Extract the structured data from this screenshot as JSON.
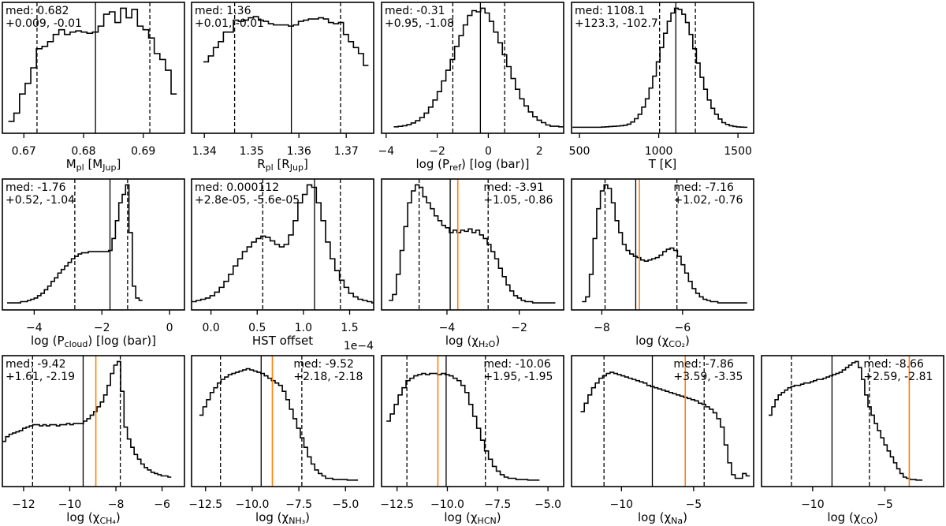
{
  "colors": {
    "hist": "#000000",
    "median": "#000000",
    "truth": "#ff7f0e"
  },
  "chart_data": [
    {
      "id": "m_pl",
      "type": "bar",
      "style": "step-histogram",
      "xlabel": [
        {
          "t": "M"
        },
        {
          "t": "pl",
          "s": 1
        },
        {
          "t": " [M"
        },
        {
          "t": "Jup",
          "s": 1
        },
        {
          "t": "]"
        }
      ],
      "xlim": [
        0.6664,
        0.6969
      ],
      "ticks": [
        0.67,
        0.68,
        0.69
      ],
      "tick_labels": [
        "0.67",
        "0.68",
        "0.69"
      ],
      "med_text": "med: 0.682",
      "err_text": "+0.009, -0.01",
      "text_side": "left",
      "median": 0.682,
      "lo": 0.6722,
      "hi": 0.6911,
      "truth": null,
      "hist": {
        "start": 0.6674,
        "end": 0.6956,
        "heights": [
          0.05,
          0.12,
          0.28,
          0.37,
          0.5,
          0.66,
          0.68,
          0.72,
          0.78,
          0.82,
          0.78,
          0.8,
          0.81,
          0.8,
          0.79,
          0.8,
          0.85,
          0.95,
          0.97,
          0.88,
          1.0,
          0.92,
          0.99,
          0.85,
          0.82,
          0.75,
          0.62,
          0.57,
          0.48,
          0.28
        ]
      }
    },
    {
      "id": "r_pl",
      "type": "bar",
      "style": "step-histogram",
      "xlabel": [
        {
          "t": "R"
        },
        {
          "t": "pl",
          "s": 1
        },
        {
          "t": " [R"
        },
        {
          "t": "Jup",
          "s": 1
        },
        {
          "t": "]"
        }
      ],
      "xlim": [
        1.3373,
        1.3758
      ],
      "ticks": [
        1.34,
        1.35,
        1.36,
        1.37
      ],
      "tick_labels": [
        "1.34",
        "1.35",
        "1.36",
        "1.37"
      ],
      "med_text": "med: 1.36",
      "err_text": "+0.01, -0.01",
      "text_side": "left",
      "median": 1.3584,
      "lo": 1.3464,
      "hi": 1.3688,
      "truth": null,
      "hist": {
        "start": 1.3398,
        "end": 1.3747,
        "heights": [
          0.55,
          0.6,
          0.67,
          0.72,
          0.8,
          0.8,
          0.9,
          0.89,
          0.9,
          0.92,
          0.93,
          0.9,
          0.89,
          0.87,
          0.86,
          0.86,
          0.86,
          0.85,
          0.86,
          0.89,
          0.9,
          0.91,
          0.91,
          0.92,
          0.91,
          0.88,
          0.87,
          0.88,
          0.78,
          0.72,
          0.67,
          0.62,
          0.52
        ]
      }
    },
    {
      "id": "log_p_ref",
      "type": "bar",
      "style": "step-histogram",
      "xlabel": [
        {
          "t": "log (P"
        },
        {
          "t": "ref",
          "s": 1
        },
        {
          "t": ") [log (bar)]"
        }
      ],
      "xlim": [
        -4.18,
        2.95
      ],
      "ticks": [
        -4,
        -2,
        0,
        2
      ],
      "tick_labels": [
        "−4",
        "−2",
        "0",
        "2"
      ],
      "med_text": "med: -0.31",
      "err_text": "+0.95, -1.08",
      "text_side": "left",
      "median": -0.31,
      "lo": -1.39,
      "hi": 0.64,
      "truth": null,
      "hist": {
        "start": -3.7,
        "end": 2.93,
        "heights": [
          0.005,
          0.009,
          0.014,
          0.023,
          0.037,
          0.056,
          0.083,
          0.12,
          0.17,
          0.23,
          0.3,
          0.39,
          0.48,
          0.57,
          0.68,
          0.77,
          0.86,
          0.94,
          0.98,
          0.97,
          1.0,
          0.96,
          0.89,
          0.8,
          0.71,
          0.61,
          0.51,
          0.41,
          0.32,
          0.24,
          0.18,
          0.13,
          0.09,
          0.06,
          0.04,
          0.02,
          0.01,
          0.01,
          0.005
        ]
      }
    },
    {
      "id": "temperature",
      "type": "bar",
      "style": "step-histogram",
      "xlabel": [
        {
          "t": "T [K]"
        }
      ],
      "xlim": [
        450,
        1599
      ],
      "ticks": [
        500,
        1000,
        1500
      ],
      "tick_labels": [
        "500",
        "1000",
        "1500"
      ],
      "med_text": "med: 1108.1",
      "err_text": "+123.3, -102.7",
      "text_side": "left",
      "median": 1108.1,
      "lo": 1005.4,
      "hi": 1231.4,
      "truth": null,
      "hist": {
        "start": 456,
        "end": 1560,
        "heights": [
          0.001,
          0.001,
          0.001,
          0.001,
          0.001,
          0.001,
          0.001,
          0.001,
          0.003,
          0.005,
          0.007,
          0.009,
          0.011,
          0.014,
          0.018,
          0.027,
          0.045,
          0.073,
          0.11,
          0.17,
          0.24,
          0.33,
          0.43,
          0.55,
          0.67,
          0.79,
          0.89,
          0.96,
          1.0,
          0.99,
          0.95,
          0.88,
          0.78,
          0.66,
          0.54,
          0.42,
          0.32,
          0.23,
          0.16,
          0.11,
          0.07,
          0.04,
          0.025,
          0.014,
          0.008,
          0.004,
          0.002,
          0.001
        ]
      }
    },
    {
      "id": "log_p_cloud",
      "type": "bar",
      "style": "step-histogram",
      "xlabel": [
        {
          "t": "log (P"
        },
        {
          "t": "cloud",
          "s": 1
        },
        {
          "t": ") [log (bar)]"
        }
      ],
      "xlim": [
        -4.94,
        0.44
      ],
      "ticks": [
        -4,
        -2,
        0
      ],
      "tick_labels": [
        "−4",
        "−2",
        "0"
      ],
      "med_text": "med: -1.76",
      "err_text": "+0.52, -1.04",
      "text_side": "left",
      "median": -1.76,
      "lo": -2.8,
      "hi": -1.24,
      "truth": null,
      "hist": {
        "start": -4.8,
        "end": -0.8,
        "heights": [
          0.01,
          0.01,
          0.01,
          0.01,
          0.02,
          0.02,
          0.03,
          0.04,
          0.05,
          0.07,
          0.09,
          0.12,
          0.15,
          0.19,
          0.22,
          0.26,
          0.29,
          0.32,
          0.35,
          0.38,
          0.4,
          0.42,
          0.43,
          0.43,
          0.44,
          0.44,
          0.44,
          0.44,
          0.44,
          0.44,
          0.45,
          0.55,
          0.7,
          0.85,
          0.92,
          1.0,
          0.6,
          0.15,
          0.05,
          0.03
        ]
      }
    },
    {
      "id": "hst_offset",
      "type": "bar",
      "style": "step-histogram",
      "xlabel": [
        {
          "t": "HST offset"
        }
      ],
      "offset_text": "1e−4",
      "xlim": [
        -0.21,
        1.76
      ],
      "ticks": [
        0,
        0.5,
        1.0,
        1.5
      ],
      "tick_labels": [
        "0.0",
        "0.5",
        "1.0",
        "1.5"
      ],
      "med_text": "med: 0.000112",
      "err_text": "+2.8e-05, -5.6e-05",
      "text_side": "left",
      "median": 1.12,
      "lo": 0.56,
      "hi": 1.4,
      "truth": null,
      "hist": {
        "start": -0.21,
        "end": 1.79,
        "heights": [
          0.02,
          0.03,
          0.04,
          0.05,
          0.07,
          0.1,
          0.14,
          0.19,
          0.25,
          0.32,
          0.38,
          0.44,
          0.48,
          0.52,
          0.55,
          0.57,
          0.56,
          0.53,
          0.5,
          0.48,
          0.5,
          0.58,
          0.7,
          0.85,
          0.92,
          1.0,
          0.98,
          0.85,
          0.7,
          0.52,
          0.38,
          0.28,
          0.2,
          0.14,
          0.09,
          0.06,
          0.04,
          0.03,
          0.02,
          0.01
        ]
      }
    },
    {
      "id": "log_chi_h2o",
      "type": "bar",
      "style": "step-histogram",
      "xlabel": [
        {
          "t": "log (χ"
        },
        {
          "t": "H₂O",
          "s": 1
        },
        {
          "t": ")"
        }
      ],
      "xlim": [
        -5.81,
        -0.77
      ],
      "ticks": [
        -4,
        -2
      ],
      "tick_labels": [
        "−4",
        "−2"
      ],
      "med_text": "med: -3.91",
      "err_text": "+1.05, -0.86",
      "text_side": "right",
      "median": -3.91,
      "lo": -4.77,
      "hi": -2.86,
      "truth": -3.7,
      "hist": {
        "start": -5.61,
        "end": -1.0,
        "heights": [
          0.03,
          0.08,
          0.25,
          0.45,
          0.65,
          0.85,
          0.95,
          1.0,
          0.98,
          0.9,
          0.85,
          0.8,
          0.74,
          0.7,
          0.66,
          0.64,
          0.6,
          0.62,
          0.6,
          0.62,
          0.61,
          0.63,
          0.6,
          0.62,
          0.58,
          0.55,
          0.5,
          0.44,
          0.38,
          0.3,
          0.23,
          0.16,
          0.11,
          0.07,
          0.05,
          0.03,
          0.02,
          0.02,
          0.01,
          0.01,
          0.01,
          0.01,
          0.01,
          0.01
        ]
      }
    },
    {
      "id": "log_chi_co2",
      "type": "bar",
      "style": "step-histogram",
      "xlabel": [
        {
          "t": "log (χ"
        },
        {
          "t": "CO₂",
          "s": 1
        },
        {
          "t": ")"
        }
      ],
      "xlim": [
        -8.75,
        -4.24
      ],
      "ticks": [
        -8,
        -6
      ],
      "tick_labels": [
        "−8",
        "−6"
      ],
      "med_text": "med: -7.16",
      "err_text": "+1.02, -0.76",
      "text_side": "right",
      "median": -7.16,
      "lo": -7.92,
      "hi": -6.14,
      "truth": -7.07,
      "hist": {
        "start": -8.49,
        "end": -4.4,
        "heights": [
          0.02,
          0.06,
          0.25,
          0.55,
          0.8,
          0.95,
          1.0,
          0.97,
          0.85,
          0.7,
          0.6,
          0.5,
          0.45,
          0.42,
          0.4,
          0.39,
          0.37,
          0.36,
          0.37,
          0.38,
          0.39,
          0.41,
          0.44,
          0.46,
          0.47,
          0.45,
          0.4,
          0.33,
          0.26,
          0.19,
          0.13,
          0.09,
          0.06,
          0.04,
          0.03,
          0.02,
          0.02,
          0.01,
          0.01,
          0.01,
          0.01,
          0.01,
          0.01,
          0.01,
          0.01
        ]
      }
    },
    {
      "id": "log_chi_ch4",
      "type": "bar",
      "style": "step-histogram",
      "xlabel": [
        {
          "t": "log (χ"
        },
        {
          "t": "CH₄",
          "s": 1
        },
        {
          "t": ")"
        }
      ],
      "xlim": [
        -12.92,
        -5.03
      ],
      "ticks": [
        -12,
        -10,
        -8,
        -6
      ],
      "tick_labels": [
        "−12",
        "−10",
        "−8",
        "−6"
      ],
      "med_text": "med: -9.42",
      "err_text": "+1.61, -2.19",
      "text_side": "left",
      "median": -9.42,
      "lo": -11.61,
      "hi": -7.81,
      "truth": -8.87,
      "hist": {
        "start": -12.92,
        "end": -5.6,
        "heights": [
          0.33,
          0.37,
          0.39,
          0.4,
          0.41,
          0.42,
          0.44,
          0.45,
          0.46,
          0.47,
          0.47,
          0.46,
          0.47,
          0.46,
          0.47,
          0.47,
          0.46,
          0.47,
          0.47,
          0.48,
          0.47,
          0.48,
          0.48,
          0.48,
          0.5,
          0.52,
          0.55,
          0.58,
          0.62,
          0.66,
          0.72,
          0.8,
          0.9,
          0.97,
          1.0,
          0.75,
          0.45,
          0.35,
          0.28,
          0.22,
          0.18,
          0.14,
          0.11,
          0.09,
          0.07,
          0.06,
          0.05,
          0.04,
          0.04,
          0.03
        ]
      }
    },
    {
      "id": "log_chi_nh3",
      "type": "bar",
      "style": "step-histogram",
      "xlabel": [
        {
          "t": "log (χ"
        },
        {
          "t": "NH₃",
          "s": 1
        },
        {
          "t": ")"
        }
      ],
      "xlim": [
        -13.25,
        -3.49
      ],
      "ticks": [
        -12.5,
        -10,
        -7.5,
        -5
      ],
      "tick_labels": [
        "−12.5",
        "−10.0",
        "−7.5",
        "−5.0"
      ],
      "med_text": "med: -9.52",
      "err_text": "+2.18, -2.18",
      "text_side": "right",
      "median": -9.52,
      "lo": -11.7,
      "hi": -7.34,
      "truth": -8.92,
      "hist": {
        "start": -12.83,
        "end": -4.33,
        "heights": [
          0.55,
          0.62,
          0.68,
          0.74,
          0.78,
          0.82,
          0.85,
          0.87,
          0.89,
          0.9,
          0.91,
          0.92,
          0.93,
          0.94,
          0.93,
          0.92,
          0.91,
          0.9,
          0.88,
          0.86,
          0.84,
          0.82,
          0.8,
          0.75,
          0.68,
          0.6,
          0.52,
          0.44,
          0.36,
          0.28,
          0.2,
          0.14,
          0.09,
          0.06,
          0.04,
          0.02,
          0.02,
          0.01,
          0.01,
          0.01,
          0.01,
          0.005,
          0.005,
          0.005
        ]
      }
    },
    {
      "id": "log_chi_hcn",
      "type": "bar",
      "style": "step-histogram",
      "xlabel": [
        {
          "t": "log (χ"
        },
        {
          "t": "HCN",
          "s": 1
        },
        {
          "t": ")"
        }
      ],
      "xlim": [
        -13.27,
        -4.22
      ],
      "ticks": [
        -12.5,
        -10,
        -7.5,
        -5
      ],
      "tick_labels": [
        "−12.5",
        "−10.0",
        "−7.5",
        "−5.0"
      ],
      "med_text": "med: -10.06",
      "err_text": "+1.95, -1.95",
      "text_side": "right",
      "median": -10.06,
      "lo": -12.01,
      "hi": -8.11,
      "truth": -10.47,
      "hist": {
        "start": -13.03,
        "end": -5.42,
        "heights": [
          0.5,
          0.56,
          0.64,
          0.72,
          0.78,
          0.84,
          0.86,
          0.88,
          0.89,
          0.9,
          0.89,
          0.9,
          0.9,
          0.89,
          0.9,
          0.89,
          0.88,
          0.86,
          0.84,
          0.8,
          0.74,
          0.64,
          0.54,
          0.44,
          0.34,
          0.25,
          0.18,
          0.12,
          0.08,
          0.05,
          0.03,
          0.02,
          0.02,
          0.01,
          0.01,
          0.01,
          0.005,
          0.005,
          0.005
        ]
      }
    },
    {
      "id": "log_chi_na",
      "type": "bar",
      "style": "step-histogram",
      "xlabel": [
        {
          "t": "log (χ"
        },
        {
          "t": "Na",
          "s": 1
        },
        {
          "t": ")"
        }
      ],
      "xlim": [
        -13.46,
        -0.84
      ],
      "ticks": [
        -10,
        -5
      ],
      "tick_labels": [
        "−10",
        "−5"
      ],
      "med_text": "med: -7.86",
      "err_text": "+3.59, -3.35",
      "text_side": "right",
      "median": -7.86,
      "lo": -11.21,
      "hi": -4.27,
      "truth": -5.58,
      "hist": {
        "start": -12.83,
        "end": -1.1,
        "heights": [
          0.58,
          0.65,
          0.72,
          0.78,
          0.82,
          0.86,
          0.88,
          0.9,
          0.91,
          0.9,
          0.89,
          0.88,
          0.87,
          0.86,
          0.85,
          0.84,
          0.83,
          0.82,
          0.8,
          0.79,
          0.78,
          0.77,
          0.76,
          0.75,
          0.74,
          0.73,
          0.72,
          0.71,
          0.7,
          0.69,
          0.68,
          0.67,
          0.65,
          0.64,
          0.62,
          0.6,
          0.57,
          0.52,
          0.45,
          0.3,
          0.15,
          0.05,
          0.02,
          0.02,
          0.06,
          0.04
        ]
      }
    },
    {
      "id": "log_chi_co",
      "type": "bar",
      "style": "step-histogram",
      "xlabel": [
        {
          "t": "log (χ"
        },
        {
          "t": "CO",
          "s": 1
        },
        {
          "t": ")"
        }
      ],
      "xlim": [
        -13.54,
        -0.93
      ],
      "ticks": [
        -10,
        -5
      ],
      "tick_labels": [
        "−10",
        "−5"
      ],
      "med_text": "med: -8.66",
      "err_text": "+2.59, -2.81",
      "text_side": "right",
      "median": -8.66,
      "lo": -11.47,
      "hi": -6.07,
      "truth": -3.31,
      "hist": {
        "start": -13.05,
        "end": -2.4,
        "heights": [
          0.55,
          0.62,
          0.68,
          0.72,
          0.74,
          0.76,
          0.78,
          0.79,
          0.8,
          0.8,
          0.81,
          0.82,
          0.82,
          0.83,
          0.84,
          0.85,
          0.85,
          0.86,
          0.87,
          0.88,
          0.89,
          0.9,
          0.91,
          0.93,
          0.95,
          0.97,
          0.99,
          1.0,
          0.95,
          0.85,
          0.72,
          0.62,
          0.55,
          0.48,
          0.42,
          0.36,
          0.3,
          0.25,
          0.2,
          0.15,
          0.1,
          0.06,
          0.03,
          0.02,
          0.01,
          0.01,
          0.005,
          0.005
        ]
      }
    }
  ]
}
